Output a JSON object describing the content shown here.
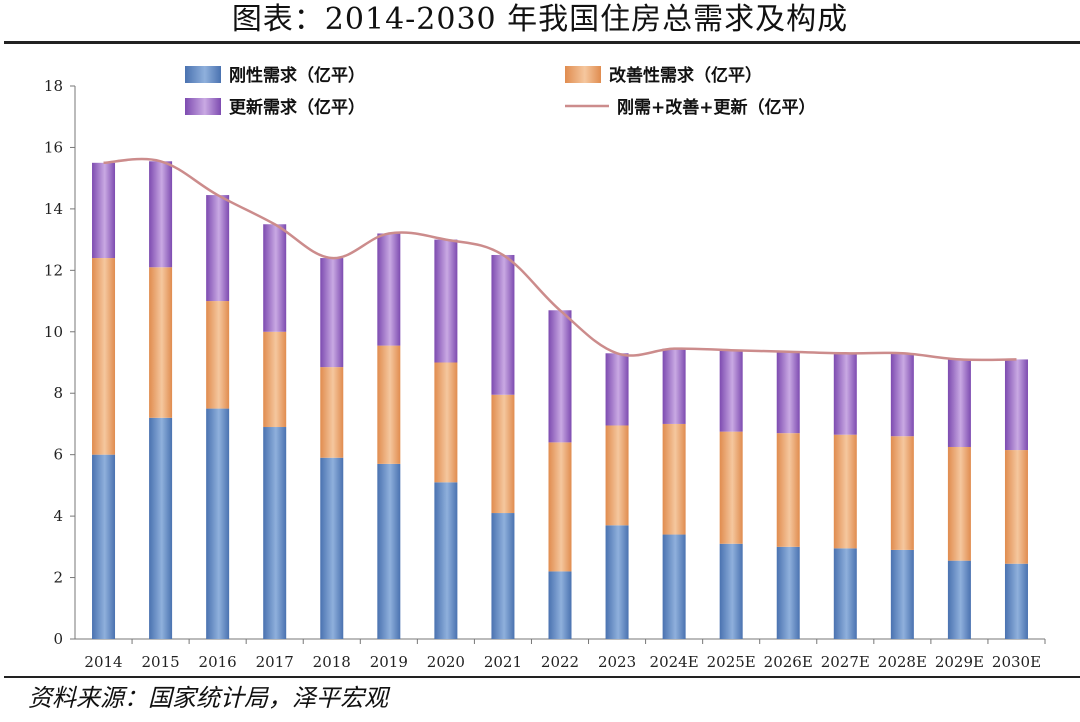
{
  "title": "图表：2014-2030 年我国住房总需求及构成",
  "source": "资料来源：国家统计局，泽平宏观",
  "colors": {
    "rigid": "#4a72b0",
    "rigid_light": "#8fb0dc",
    "improve": "#e08c4f",
    "improve_light": "#f5c79e",
    "renew": "#7d4bb0",
    "renew_light": "#c9a9e3",
    "total_line": "#cc8c8c"
  },
  "chart_data": {
    "type": "bar",
    "stacked": true,
    "categories": [
      "2014",
      "2015",
      "2016",
      "2017",
      "2018",
      "2019",
      "2020",
      "2021",
      "2022",
      "2023",
      "2024E",
      "2025E",
      "2026E",
      "2027E",
      "2028E",
      "2029E",
      "2030E"
    ],
    "series": [
      {
        "name": "刚性需求（亿平）",
        "color_key": "rigid",
        "values": [
          6.0,
          7.2,
          7.5,
          6.9,
          5.9,
          5.7,
          5.1,
          4.1,
          2.2,
          3.7,
          3.4,
          3.1,
          3.0,
          2.95,
          2.9,
          2.55,
          2.45
        ]
      },
      {
        "name": "改善性需求（亿平）",
        "color_key": "improve",
        "values": [
          6.4,
          4.9,
          3.5,
          3.1,
          2.95,
          3.85,
          3.9,
          3.85,
          4.2,
          3.25,
          3.6,
          3.65,
          3.7,
          3.7,
          3.7,
          3.7,
          3.7
        ]
      },
      {
        "name": "更新需求（亿平）",
        "color_key": "renew",
        "values": [
          3.1,
          3.45,
          3.45,
          3.5,
          3.55,
          3.65,
          4.0,
          4.55,
          4.3,
          2.35,
          2.45,
          2.65,
          2.65,
          2.65,
          2.7,
          2.85,
          2.95
        ]
      },
      {
        "name": "刚需+改善+更新（亿平）",
        "type": "line",
        "color_key": "total_line",
        "values": [
          15.5,
          15.55,
          14.45,
          13.5,
          12.4,
          13.2,
          13.0,
          12.5,
          10.7,
          9.3,
          9.45,
          9.4,
          9.35,
          9.3,
          9.3,
          9.1,
          9.1
        ]
      }
    ],
    "ylim": [
      0,
      18
    ],
    "yticks": [
      0,
      2,
      4,
      6,
      8,
      10,
      12,
      14,
      16,
      18
    ],
    "grid": false,
    "legend": "top"
  }
}
